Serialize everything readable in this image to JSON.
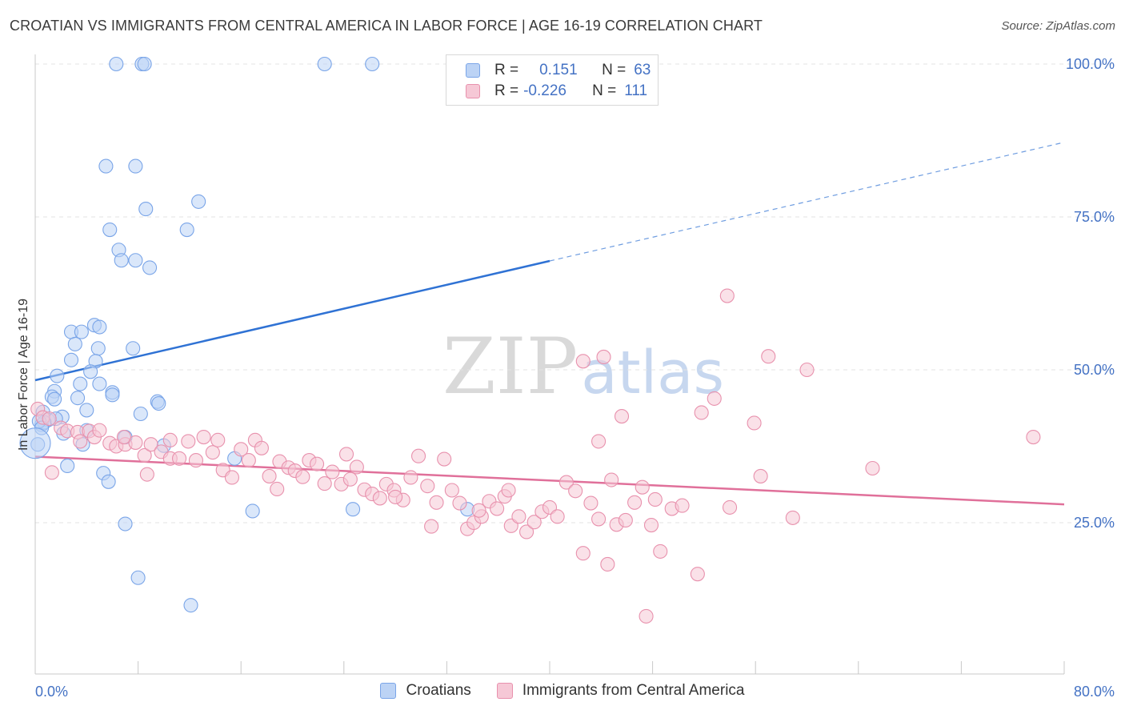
{
  "title": "CROATIAN VS IMMIGRANTS FROM CENTRAL AMERICA IN LABOR FORCE | AGE 16-19 CORRELATION CHART",
  "source": "Source: ZipAtlas.com",
  "watermark": {
    "zip": "ZIP",
    "atlas": "atlas"
  },
  "legend_stats": [
    {
      "r_label": "R =",
      "r_value": "0.151",
      "n_label": "N =",
      "n_value": "63"
    },
    {
      "r_label": "R =",
      "r_value": "-0.226",
      "n_label": "N =",
      "n_value": "111"
    }
  ],
  "chart_data": {
    "type": "scatter",
    "title": "CROATIAN VS IMMIGRANTS FROM CENTRAL AMERICA IN LABOR FORCE | AGE 16-19 CORRELATION CHART",
    "ylabel": "In Labor Force | Age 16-19",
    "xlabel": "",
    "xlim": [
      0,
      80
    ],
    "ylim": [
      2,
      102
    ],
    "x_tick_labels": [
      "0.0%",
      "80.0%"
    ],
    "y_tick_labels": [
      "100.0%",
      "75.0%",
      "50.0%",
      "25.0%"
    ],
    "y_ticks": [
      100,
      75,
      50,
      25
    ],
    "grid": true,
    "legend_position": "bottom",
    "series": [
      {
        "name": "Croatians",
        "color": "#7aa5e8",
        "fill": "#bcd3f5",
        "r": 0.151,
        "n": 63,
        "trend": {
          "x": [
            0,
            40
          ],
          "y": [
            48.3,
            67.8
          ],
          "dashed_to": [
            80,
            87.2
          ]
        },
        "points": [
          [
            6.3,
            100
          ],
          [
            8.3,
            100
          ],
          [
            8.5,
            100
          ],
          [
            22.5,
            100
          ],
          [
            26.2,
            100
          ],
          [
            5.5,
            83.3
          ],
          [
            7.8,
            83.3
          ],
          [
            8.6,
            76.3
          ],
          [
            12.7,
            77.5
          ],
          [
            5.8,
            72.9
          ],
          [
            11.8,
            72.9
          ],
          [
            6.5,
            69.6
          ],
          [
            6.7,
            67.9
          ],
          [
            7.8,
            67.9
          ],
          [
            8.9,
            66.7
          ],
          [
            2.8,
            56.2
          ],
          [
            3.6,
            56.2
          ],
          [
            4.6,
            57.3
          ],
          [
            5.0,
            57.0
          ],
          [
            3.1,
            54.2
          ],
          [
            4.9,
            53.5
          ],
          [
            7.6,
            53.5
          ],
          [
            2.8,
            51.6
          ],
          [
            4.7,
            51.4
          ],
          [
            4.3,
            49.7
          ],
          [
            1.7,
            49.0
          ],
          [
            3.5,
            47.7
          ],
          [
            5.0,
            47.7
          ],
          [
            1.5,
            46.5
          ],
          [
            6.0,
            46.3
          ],
          [
            1.3,
            45.6
          ],
          [
            3.3,
            45.4
          ],
          [
            6.0,
            45.9
          ],
          [
            1.5,
            45.2
          ],
          [
            9.5,
            44.8
          ],
          [
            9.6,
            44.5
          ],
          [
            4.0,
            43.4
          ],
          [
            8.2,
            42.8
          ],
          [
            0.6,
            43.1
          ],
          [
            2.1,
            42.3
          ],
          [
            1.0,
            41.8
          ],
          [
            1.6,
            42.0
          ],
          [
            0.5,
            41.0
          ],
          [
            0.7,
            41.4
          ],
          [
            0.3,
            41.6
          ],
          [
            0.5,
            40.5
          ],
          [
            4.0,
            40.1
          ],
          [
            2.2,
            39.6
          ],
          [
            7.0,
            39.0
          ],
          [
            3.7,
            37.8
          ],
          [
            10.0,
            37.6
          ],
          [
            0.2,
            37.8
          ],
          [
            15.5,
            35.5
          ],
          [
            2.5,
            34.3
          ],
          [
            5.3,
            33.1
          ],
          [
            5.7,
            31.7
          ],
          [
            16.9,
            26.9
          ],
          [
            24.7,
            27.2
          ],
          [
            33.6,
            27.2
          ],
          [
            7.0,
            24.8
          ],
          [
            8.0,
            16.0
          ],
          [
            12.1,
            11.5
          ],
          [
            0.0,
            38.0
          ]
        ]
      },
      {
        "name": "Immigrants from Central America",
        "color": "#e891ad",
        "fill": "#f6c8d6",
        "r": -0.226,
        "n": 111,
        "trend": {
          "x": [
            0,
            80
          ],
          "y": [
            35.8,
            28.0
          ]
        },
        "points": [
          [
            53.8,
            62.1
          ],
          [
            42.6,
            51.4
          ],
          [
            44.2,
            52.1
          ],
          [
            57.0,
            52.2
          ],
          [
            60.0,
            50.0
          ],
          [
            52.8,
            45.3
          ],
          [
            51.8,
            43.0
          ],
          [
            45.6,
            42.4
          ],
          [
            55.9,
            41.3
          ],
          [
            77.6,
            39.0
          ],
          [
            43.8,
            38.3
          ],
          [
            0.2,
            43.6
          ],
          [
            0.6,
            42.2
          ],
          [
            1.1,
            42.0
          ],
          [
            2.0,
            40.5
          ],
          [
            2.5,
            40.0
          ],
          [
            3.3,
            39.8
          ],
          [
            4.2,
            40.0
          ],
          [
            4.6,
            39.0
          ],
          [
            5.0,
            40.1
          ],
          [
            5.8,
            38.0
          ],
          [
            6.3,
            37.5
          ],
          [
            7.0,
            37.8
          ],
          [
            7.8,
            38.1
          ],
          [
            8.5,
            36.0
          ],
          [
            9.0,
            37.8
          ],
          [
            9.8,
            36.6
          ],
          [
            10.5,
            35.5
          ],
          [
            11.2,
            35.5
          ],
          [
            11.9,
            38.3
          ],
          [
            12.5,
            35.2
          ],
          [
            13.1,
            39.0
          ],
          [
            13.8,
            36.5
          ],
          [
            14.6,
            33.6
          ],
          [
            15.3,
            32.4
          ],
          [
            16.0,
            37.0
          ],
          [
            16.6,
            35.2
          ],
          [
            17.1,
            38.5
          ],
          [
            17.6,
            37.2
          ],
          [
            18.2,
            32.6
          ],
          [
            19.0,
            35.0
          ],
          [
            19.7,
            34.0
          ],
          [
            20.2,
            33.5
          ],
          [
            20.8,
            32.5
          ],
          [
            21.3,
            35.2
          ],
          [
            21.9,
            34.6
          ],
          [
            22.5,
            31.4
          ],
          [
            23.1,
            33.3
          ],
          [
            23.8,
            31.3
          ],
          [
            24.5,
            32.1
          ],
          [
            25.0,
            34.1
          ],
          [
            25.6,
            30.4
          ],
          [
            26.2,
            29.7
          ],
          [
            26.8,
            29.0
          ],
          [
            27.3,
            31.3
          ],
          [
            27.9,
            30.3
          ],
          [
            28.6,
            28.7
          ],
          [
            29.2,
            32.4
          ],
          [
            29.8,
            35.9
          ],
          [
            30.5,
            31.0
          ],
          [
            31.2,
            28.3
          ],
          [
            31.8,
            35.4
          ],
          [
            32.4,
            30.3
          ],
          [
            33.0,
            28.2
          ],
          [
            33.6,
            24.0
          ],
          [
            34.1,
            25.0
          ],
          [
            34.7,
            26.0
          ],
          [
            35.3,
            28.5
          ],
          [
            35.9,
            27.3
          ],
          [
            36.5,
            29.3
          ],
          [
            37.0,
            24.5
          ],
          [
            37.6,
            26.0
          ],
          [
            38.2,
            23.5
          ],
          [
            38.8,
            25.1
          ],
          [
            39.4,
            26.8
          ],
          [
            40.0,
            27.5
          ],
          [
            40.6,
            26.0
          ],
          [
            41.3,
            31.6
          ],
          [
            42.0,
            30.2
          ],
          [
            42.6,
            20.0
          ],
          [
            43.2,
            28.2
          ],
          [
            43.8,
            25.6
          ],
          [
            44.5,
            18.2
          ],
          [
            45.2,
            24.7
          ],
          [
            45.9,
            25.4
          ],
          [
            46.6,
            28.3
          ],
          [
            47.2,
            30.8
          ],
          [
            47.9,
            24.6
          ],
          [
            48.6,
            20.3
          ],
          [
            49.5,
            27.3
          ],
          [
            50.3,
            27.8
          ],
          [
            51.5,
            16.6
          ],
          [
            54.0,
            27.5
          ],
          [
            56.4,
            32.6
          ],
          [
            58.9,
            25.8
          ],
          [
            65.1,
            33.9
          ],
          [
            47.5,
            9.7
          ],
          [
            1.3,
            33.2
          ],
          [
            3.5,
            38.3
          ],
          [
            6.9,
            39.0
          ],
          [
            8.7,
            32.9
          ],
          [
            10.5,
            38.5
          ],
          [
            14.2,
            38.5
          ],
          [
            18.8,
            30.5
          ],
          [
            24.2,
            36.2
          ],
          [
            28.0,
            29.2
          ],
          [
            30.8,
            24.4
          ],
          [
            34.5,
            27.0
          ],
          [
            36.8,
            30.3
          ],
          [
            44.8,
            32.0
          ],
          [
            48.2,
            28.8
          ]
        ]
      }
    ]
  }
}
